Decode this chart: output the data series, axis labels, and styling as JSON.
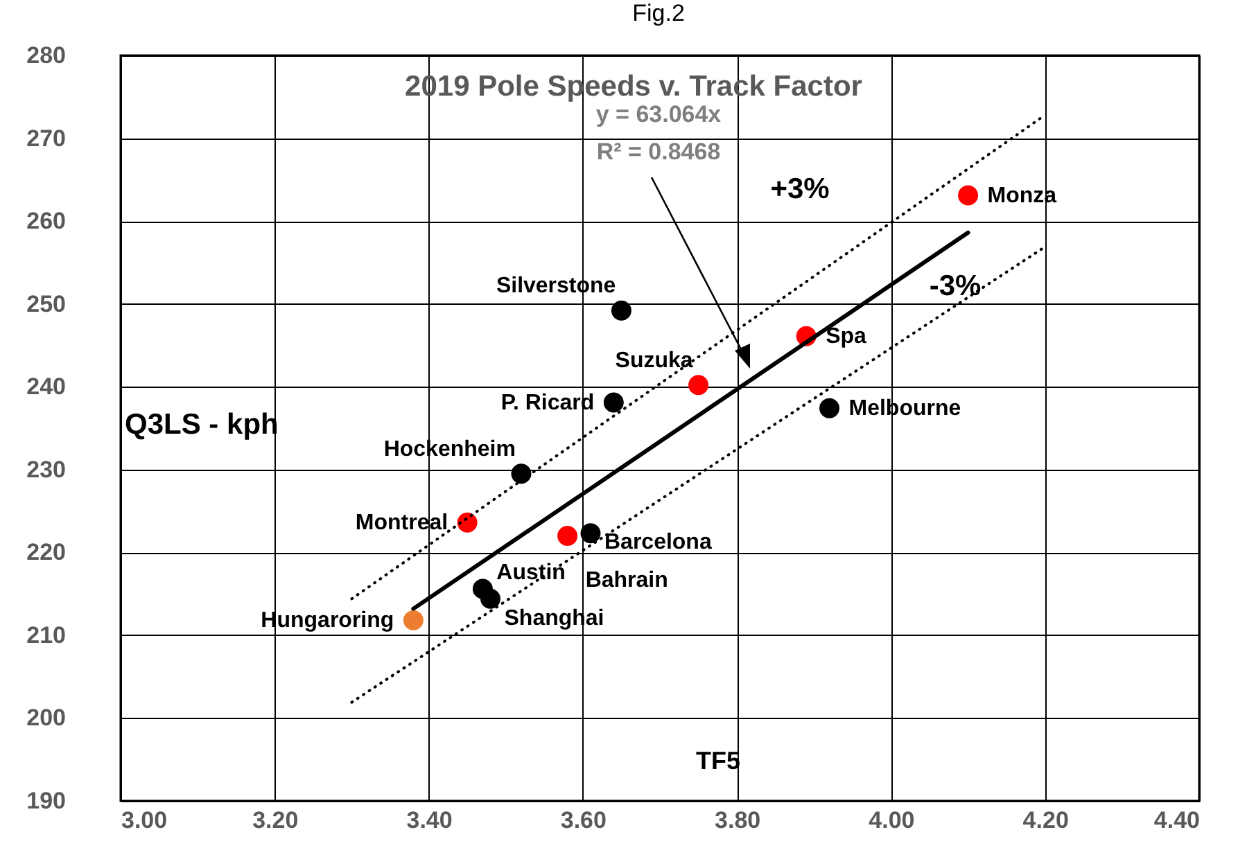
{
  "chart_data": {
    "type": "scatter",
    "title": "2019 Pole Speeds v. Track Factor",
    "xlabel": "TF5",
    "ylabel": "Q3LS - kph",
    "annotations": [
      "Fig.2",
      "y = 63.064x",
      "R² = 0.8468",
      "+3%",
      "-3%",
      {
        "text": "Monza",
        "x": 4.1,
        "y": 263.1
      },
      {
        "text": "Spa",
        "x": 3.89,
        "y": 246.1
      },
      {
        "text": "Melbourne",
        "x": 3.92,
        "y": 237.4
      },
      {
        "text": "Silverstone",
        "x": 3.65,
        "y": 249.2
      },
      {
        "text": "Suzuka",
        "x": 3.75,
        "y": 240.2
      },
      {
        "text": "P. Ricard",
        "x": 3.64,
        "y": 238.1
      },
      {
        "text": "Hockenheim",
        "x": 3.52,
        "y": 229.5
      },
      {
        "text": "Montreal",
        "x": 3.45,
        "y": 223.6
      },
      {
        "text": "Bahrain",
        "x": 3.58,
        "y": 222.0
      },
      {
        "text": "Barcelona",
        "x": 3.61,
        "y": 222.3
      },
      {
        "text": "Austin",
        "x": 3.47,
        "y": 215.6
      },
      {
        "text": "Shanghai",
        "x": 3.48,
        "y": 214.4
      },
      {
        "text": "Hungaroring",
        "x": 3.38,
        "y": 211.8
      }
    ],
    "xlim": [
      3.0,
      4.4
    ],
    "ylim": [
      190,
      280
    ],
    "xticks": [
      {
        "value": 3,
        "label": "3.00"
      },
      {
        "value": 3.2,
        "label": "3.20"
      },
      {
        "value": 3.4,
        "label": "3.40"
      },
      {
        "value": 3.6,
        "label": "3.60"
      },
      {
        "value": 3.8,
        "label": "3.80"
      },
      {
        "value": 4,
        "label": "4.00"
      },
      {
        "value": 4.2,
        "label": "4.20"
      },
      {
        "value": 4.4,
        "label": "4.40"
      }
    ],
    "yticks": [
      190,
      200,
      210,
      220,
      230,
      240,
      250,
      260,
      270,
      280
    ],
    "grid": true,
    "marker": "circle",
    "series": [
      {
        "type": "scatter",
        "color": "#000000",
        "x": [
          3.92,
          3.65,
          3.64,
          3.52,
          3.61,
          3.47,
          3.48
        ],
        "values": [
          237.4,
          249.2,
          238.1,
          229.5,
          222.3,
          215.6,
          214.4
        ]
      },
      {
        "type": "scatter",
        "color": "#ff0000",
        "x": [
          4.1,
          3.89,
          3.75,
          3.45,
          3.58
        ],
        "values": [
          263.1,
          246.1,
          240.2,
          223.6,
          222.0
        ]
      },
      {
        "type": "scatter",
        "color": "#ed7d31",
        "x": [
          3.38
        ],
        "values": [
          211.8
        ]
      },
      {
        "type": "line",
        "marker": "none",
        "color": "#000000",
        "line_style": "solid",
        "x": [
          3.38,
          4.1
        ],
        "values": [
          213.2,
          258.6
        ]
      },
      {
        "type": "line",
        "marker": "none",
        "color": "#000000",
        "line_style": "dotted",
        "x": [
          3.3,
          4.2
        ],
        "values": [
          214.4,
          272.8
        ]
      },
      {
        "type": "line",
        "marker": "none",
        "color": "#000000",
        "line_style": "dotted",
        "x": [
          3.3,
          4.2
        ],
        "values": [
          201.9,
          256.9
        ]
      }
    ]
  }
}
